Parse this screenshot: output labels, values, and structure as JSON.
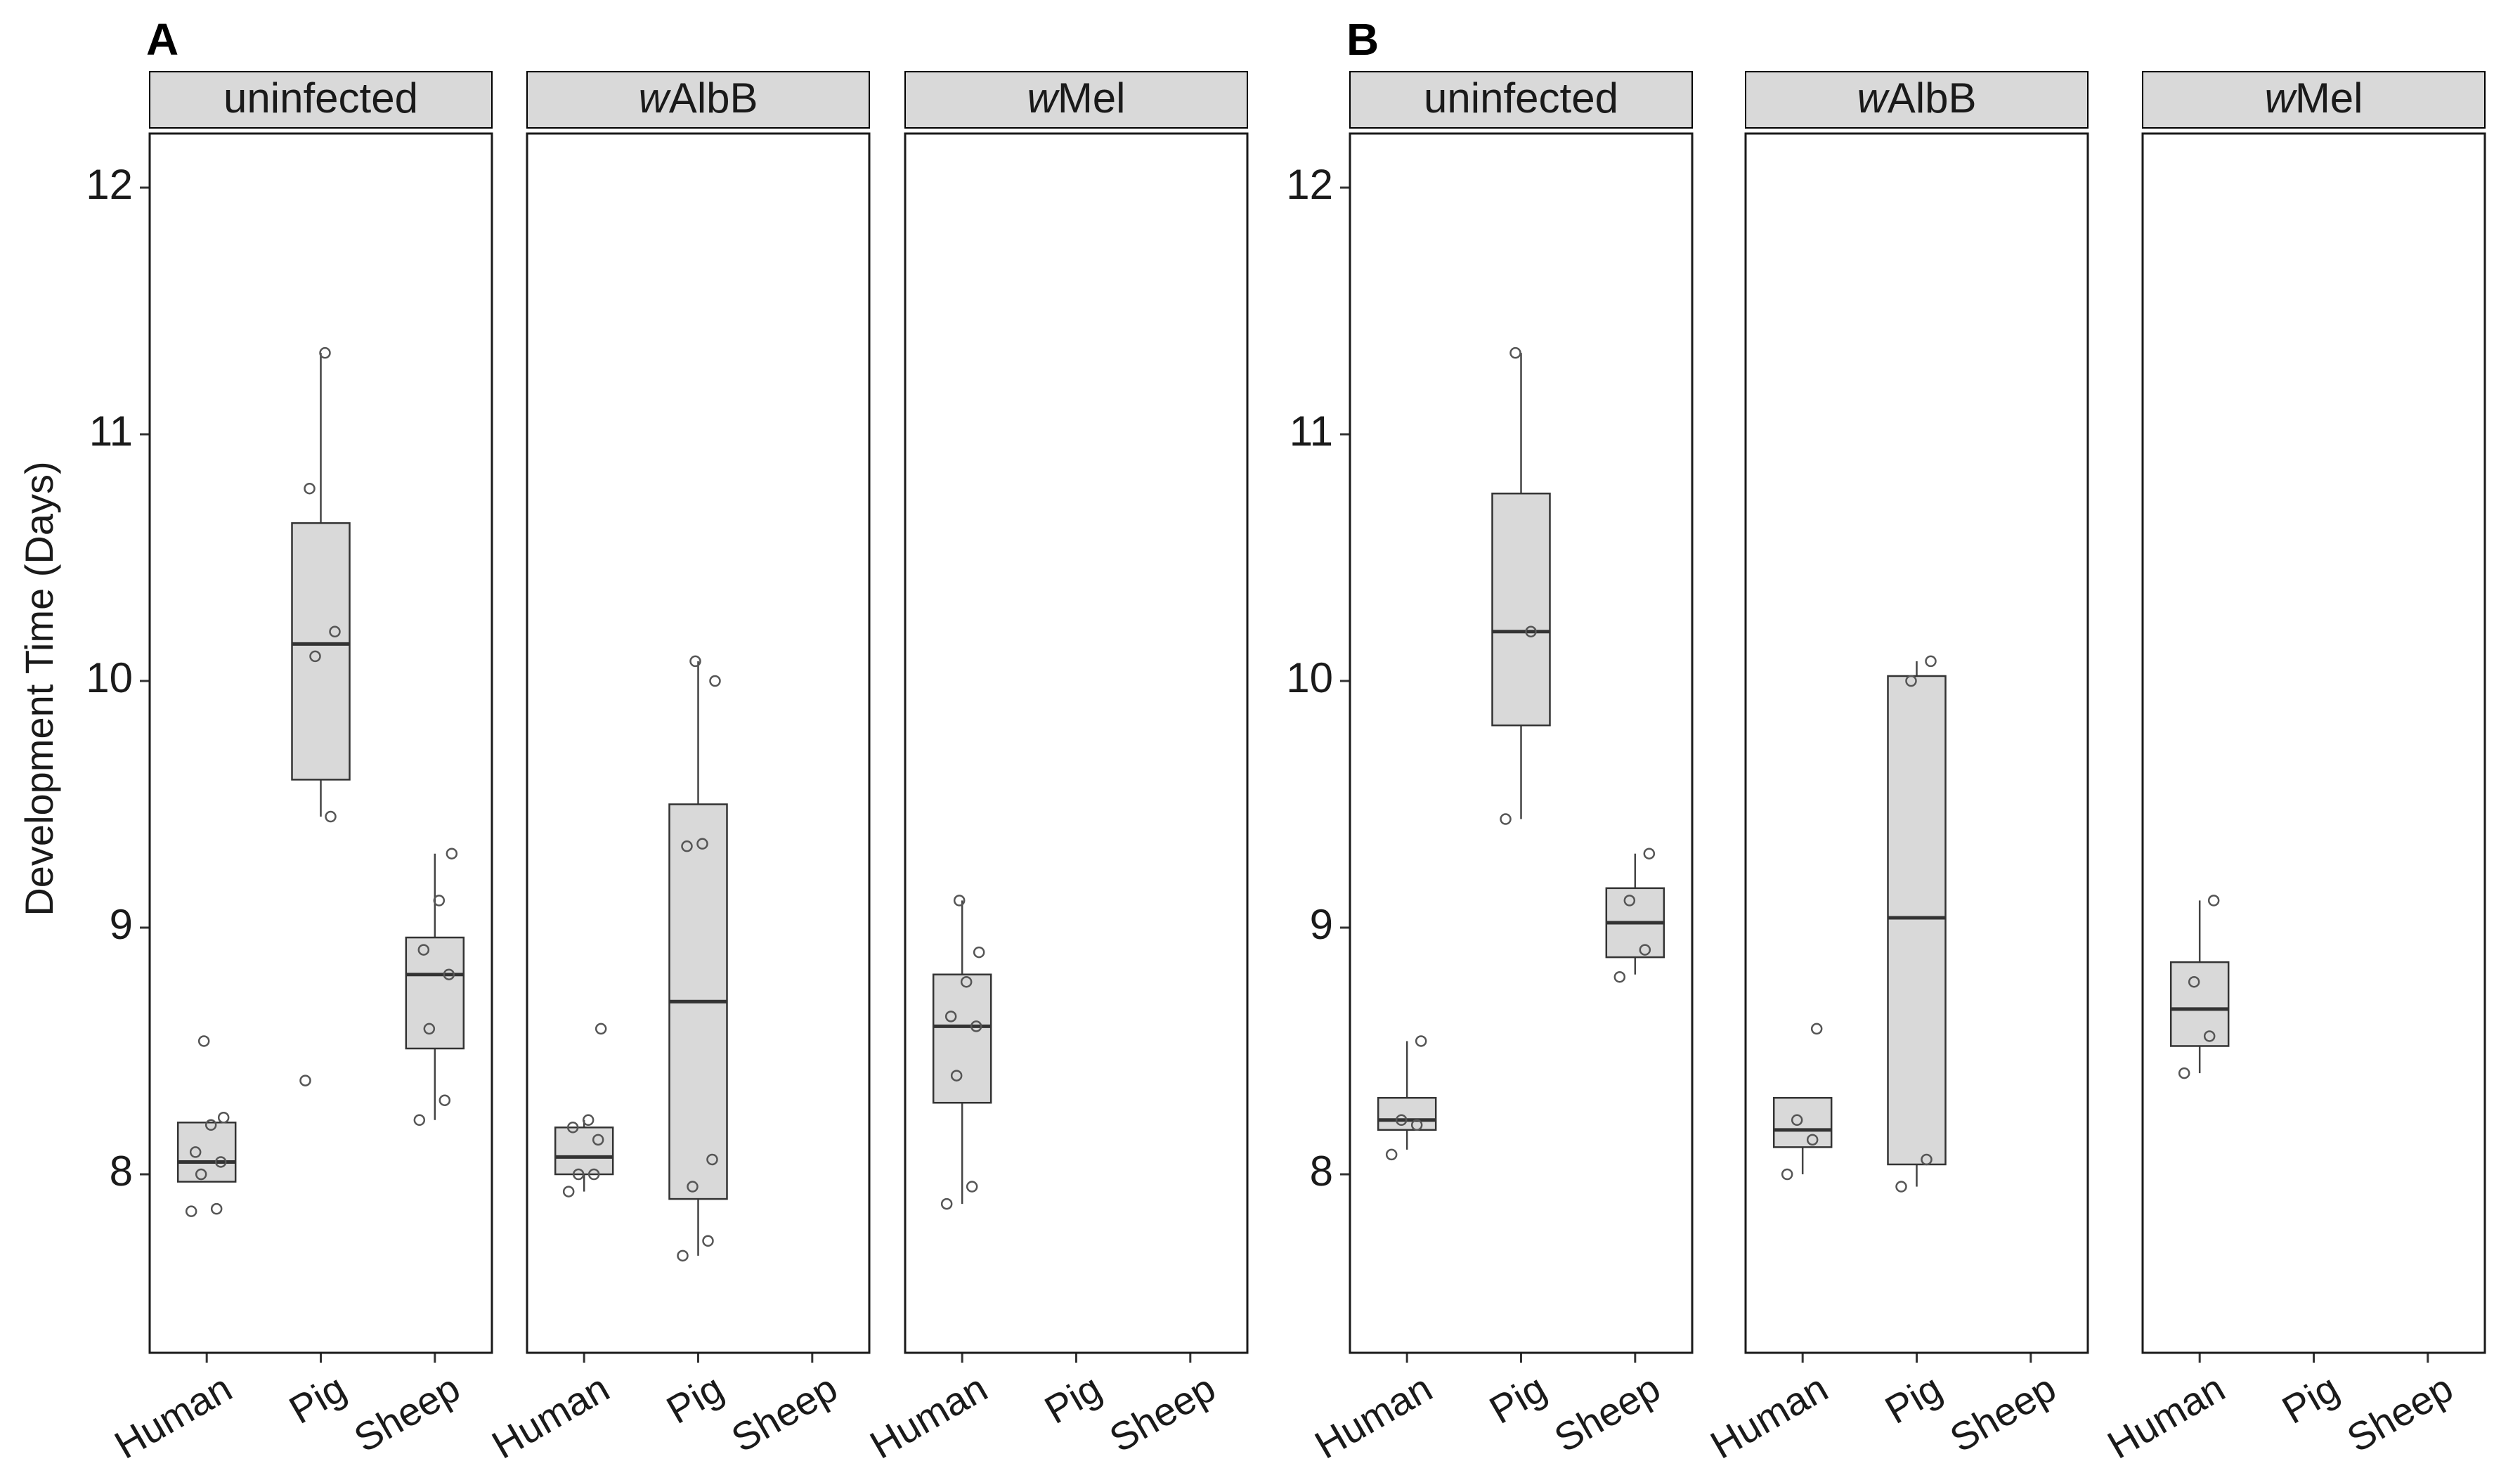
{
  "chart_data": {
    "type": "box",
    "ylabel": "Development Time (Days)",
    "ylim": [
      7.3,
      12.2
    ],
    "yticks": [
      8,
      9,
      10,
      11,
      12
    ],
    "categories": [
      "Human",
      "Pig",
      "Sheep"
    ],
    "figures": [
      {
        "label": "A",
        "facets": [
          {
            "strip_prefix": "",
            "strip_text": "uninfected",
            "groups": [
              {
                "name": "Human",
                "q1": 7.97,
                "median": 8.05,
                "q3": 8.21,
                "whisker_low": 7.97,
                "whisker_high": 8.21,
                "points": [
                  7.85,
                  7.86,
                  8.0,
                  8.05,
                  8.09,
                  8.2,
                  8.23,
                  8.54
                ]
              },
              {
                "name": "Pig",
                "q1": 9.6,
                "median": 10.15,
                "q3": 10.64,
                "whisker_low": 9.45,
                "whisker_high": 11.33,
                "points": [
                  8.38,
                  9.45,
                  10.1,
                  10.2,
                  10.78,
                  11.33
                ]
              },
              {
                "name": "Sheep",
                "q1": 8.51,
                "median": 8.81,
                "q3": 8.96,
                "whisker_low": 8.22,
                "whisker_high": 9.3,
                "points": [
                  8.22,
                  8.3,
                  8.59,
                  8.81,
                  8.91,
                  9.11,
                  9.3
                ]
              }
            ]
          },
          {
            "strip_prefix": "w",
            "strip_text": "AlbB",
            "groups": [
              {
                "name": "Human",
                "q1": 8.0,
                "median": 8.07,
                "q3": 8.19,
                "whisker_low": 7.93,
                "whisker_high": 8.22,
                "points": [
                  7.93,
                  8.0,
                  8.0,
                  8.14,
                  8.19,
                  8.22,
                  8.59
                ]
              },
              {
                "name": "Pig",
                "q1": 7.9,
                "median": 8.7,
                "q3": 9.5,
                "whisker_low": 7.67,
                "whisker_high": 10.08,
                "points": [
                  7.67,
                  7.73,
                  7.95,
                  8.06,
                  9.33,
                  9.34,
                  10.0,
                  10.08
                ]
              },
              {
                "name": "Sheep",
                "points": []
              }
            ]
          },
          {
            "strip_prefix": "w",
            "strip_text": "Mel",
            "groups": [
              {
                "name": "Human",
                "q1": 8.29,
                "median": 8.6,
                "q3": 8.81,
                "whisker_low": 7.88,
                "whisker_high": 9.11,
                "points": [
                  7.88,
                  7.95,
                  8.4,
                  8.6,
                  8.64,
                  8.78,
                  8.9,
                  9.11
                ]
              },
              {
                "name": "Pig",
                "points": []
              },
              {
                "name": "Sheep",
                "points": []
              }
            ]
          }
        ]
      },
      {
        "label": "B",
        "facets": [
          {
            "strip_prefix": "",
            "strip_text": "uninfected",
            "groups": [
              {
                "name": "Human",
                "q1": 8.18,
                "median": 8.22,
                "q3": 8.31,
                "whisker_low": 8.1,
                "whisker_high": 8.54,
                "points": [
                  8.08,
                  8.2,
                  8.22,
                  8.54
                ]
              },
              {
                "name": "Pig",
                "q1": 9.82,
                "median": 10.2,
                "q3": 10.76,
                "whisker_low": 9.44,
                "whisker_high": 11.33,
                "points": [
                  9.44,
                  10.2,
                  11.33
                ]
              },
              {
                "name": "Sheep",
                "q1": 8.88,
                "median": 9.02,
                "q3": 9.16,
                "whisker_low": 8.81,
                "whisker_high": 9.3,
                "points": [
                  8.8,
                  8.91,
                  9.11,
                  9.3
                ]
              }
            ]
          },
          {
            "strip_prefix": "w",
            "strip_text": "AlbB",
            "groups": [
              {
                "name": "Human",
                "q1": 8.11,
                "median": 8.18,
                "q3": 8.31,
                "whisker_low": 8.0,
                "whisker_high": 8.31,
                "points": [
                  8.0,
                  8.14,
                  8.22,
                  8.59
                ]
              },
              {
                "name": "Pig",
                "q1": 8.04,
                "median": 9.04,
                "q3": 10.02,
                "whisker_low": 7.95,
                "whisker_high": 10.08,
                "points": [
                  7.95,
                  8.06,
                  10.0,
                  10.08
                ]
              },
              {
                "name": "Sheep",
                "points": []
              }
            ]
          },
          {
            "strip_prefix": "w",
            "strip_text": "Mel",
            "groups": [
              {
                "name": "Human",
                "q1": 8.52,
                "median": 8.67,
                "q3": 8.86,
                "whisker_low": 8.41,
                "whisker_high": 9.11,
                "points": [
                  8.41,
                  8.56,
                  8.78,
                  9.11
                ]
              },
              {
                "name": "Pig",
                "points": []
              },
              {
                "name": "Sheep",
                "points": []
              }
            ]
          }
        ]
      }
    ]
  }
}
